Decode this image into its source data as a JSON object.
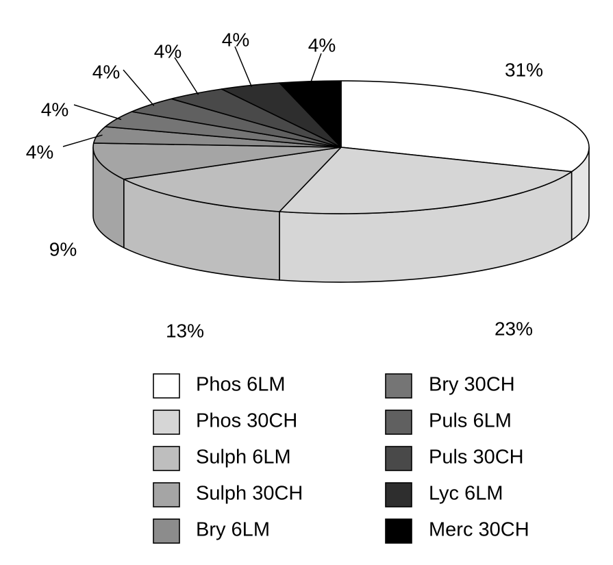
{
  "chart_data": {
    "type": "pie",
    "style": "3d",
    "legend_placement": "bottom",
    "slices": [
      {
        "name": "Phos 6LM",
        "value": 31,
        "label": "31%",
        "color": "#ffffff"
      },
      {
        "name": "Phos 30CH",
        "value": 23,
        "label": "23%",
        "color": "#d6d6d6"
      },
      {
        "name": "Sulph 6LM",
        "value": 13,
        "label": "13%",
        "color": "#bebebe"
      },
      {
        "name": "Sulph 30CH",
        "value": 9,
        "label": "9%",
        "color": "#a5a5a5"
      },
      {
        "name": "Bry 6LM",
        "value": 4,
        "label": "4%",
        "color": "#8c8c8c"
      },
      {
        "name": "Bry 30CH",
        "value": 4,
        "label": "4%",
        "color": "#757575"
      },
      {
        "name": "Puls 6LM",
        "value": 4,
        "label": "4%",
        "color": "#606060"
      },
      {
        "name": "Puls 30CH",
        "value": 4,
        "label": "4%",
        "color": "#494949"
      },
      {
        "name": "Lyc 6LM",
        "value": 4,
        "label": "4%",
        "color": "#2e2e2e"
      },
      {
        "name": "Merc 30CH",
        "value": 4,
        "label": "4%",
        "color": "#000000"
      }
    ]
  }
}
